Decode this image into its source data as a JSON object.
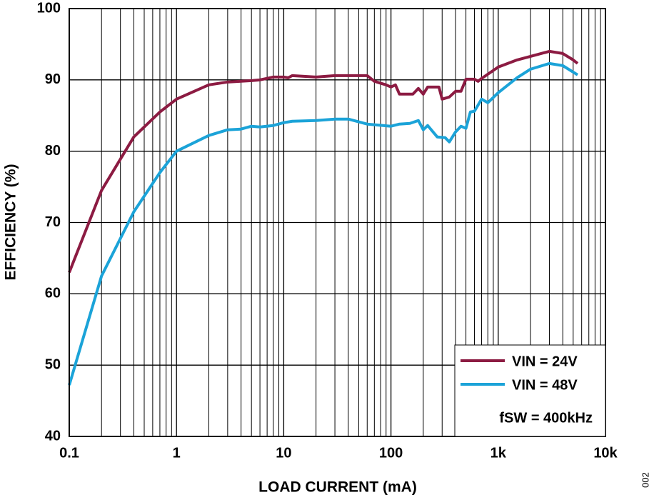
{
  "chart_data": {
    "type": "line",
    "x_label": "LOAD CURRENT (mA)",
    "y_label": "EFFICIENCY (%)",
    "x_scale": "log",
    "grid": true,
    "legend_position": "lower right",
    "annotation": "fSW = 400kHz",
    "figure_id": "002",
    "xlim": [
      0.1,
      10000
    ],
    "ylim": [
      40,
      100
    ],
    "xticks": [
      0.1,
      1,
      10,
      100,
      {
        "value": 1000,
        "label": "1k"
      },
      {
        "value": 10000,
        "label": "10k"
      }
    ],
    "yticks": [
      40,
      50,
      60,
      70,
      80,
      90,
      100
    ],
    "series": [
      {
        "name": "VIN = 24V",
        "color": "#8c1b42",
        "x": [
          0.1,
          0.2,
          0.4,
          0.7,
          1,
          2,
          3,
          5,
          6,
          8,
          10,
          11,
          12,
          20,
          30,
          60,
          70,
          90,
          100,
          110,
          120,
          160,
          180,
          200,
          220,
          280,
          300,
          350,
          400,
          450,
          500,
          600,
          650,
          700,
          1000,
          1500,
          2000,
          3000,
          4000,
          5000,
          5500
        ],
        "values": [
          63,
          74.5,
          82,
          85.5,
          87.3,
          89.3,
          89.7,
          89.9,
          90,
          90.4,
          90.4,
          90.3,
          90.6,
          90.4,
          90.6,
          90.6,
          89.8,
          89.3,
          89,
          89.3,
          88,
          88,
          88.8,
          88,
          89,
          89,
          87.3,
          87.6,
          88.4,
          88.4,
          90.1,
          90.1,
          89.8,
          90.2,
          91.8,
          92.8,
          93.3,
          94,
          93.7,
          92.8,
          92.3
        ]
      },
      {
        "name": "VIN = 48V",
        "color": "#1ba3d8",
        "x": [
          0.1,
          0.2,
          0.4,
          0.7,
          1,
          2,
          3,
          4,
          5,
          6,
          8,
          10,
          12,
          20,
          30,
          40,
          60,
          100,
          120,
          150,
          180,
          200,
          220,
          270,
          320,
          350,
          400,
          450,
          500,
          550,
          600,
          700,
          800,
          1000,
          1500,
          2000,
          3000,
          4000,
          5500
        ],
        "values": [
          47.2,
          62.5,
          71.5,
          77,
          80,
          82.2,
          83,
          83.1,
          83.5,
          83.4,
          83.6,
          84,
          84.2,
          84.3,
          84.5,
          84.5,
          83.8,
          83.5,
          83.8,
          83.9,
          84.3,
          83,
          83.6,
          82,
          81.9,
          81.3,
          82.7,
          83.5,
          83.2,
          85.5,
          85.6,
          87.3,
          86.8,
          88.2,
          90.3,
          91.5,
          92.3,
          92,
          90.7
        ]
      }
    ]
  }
}
